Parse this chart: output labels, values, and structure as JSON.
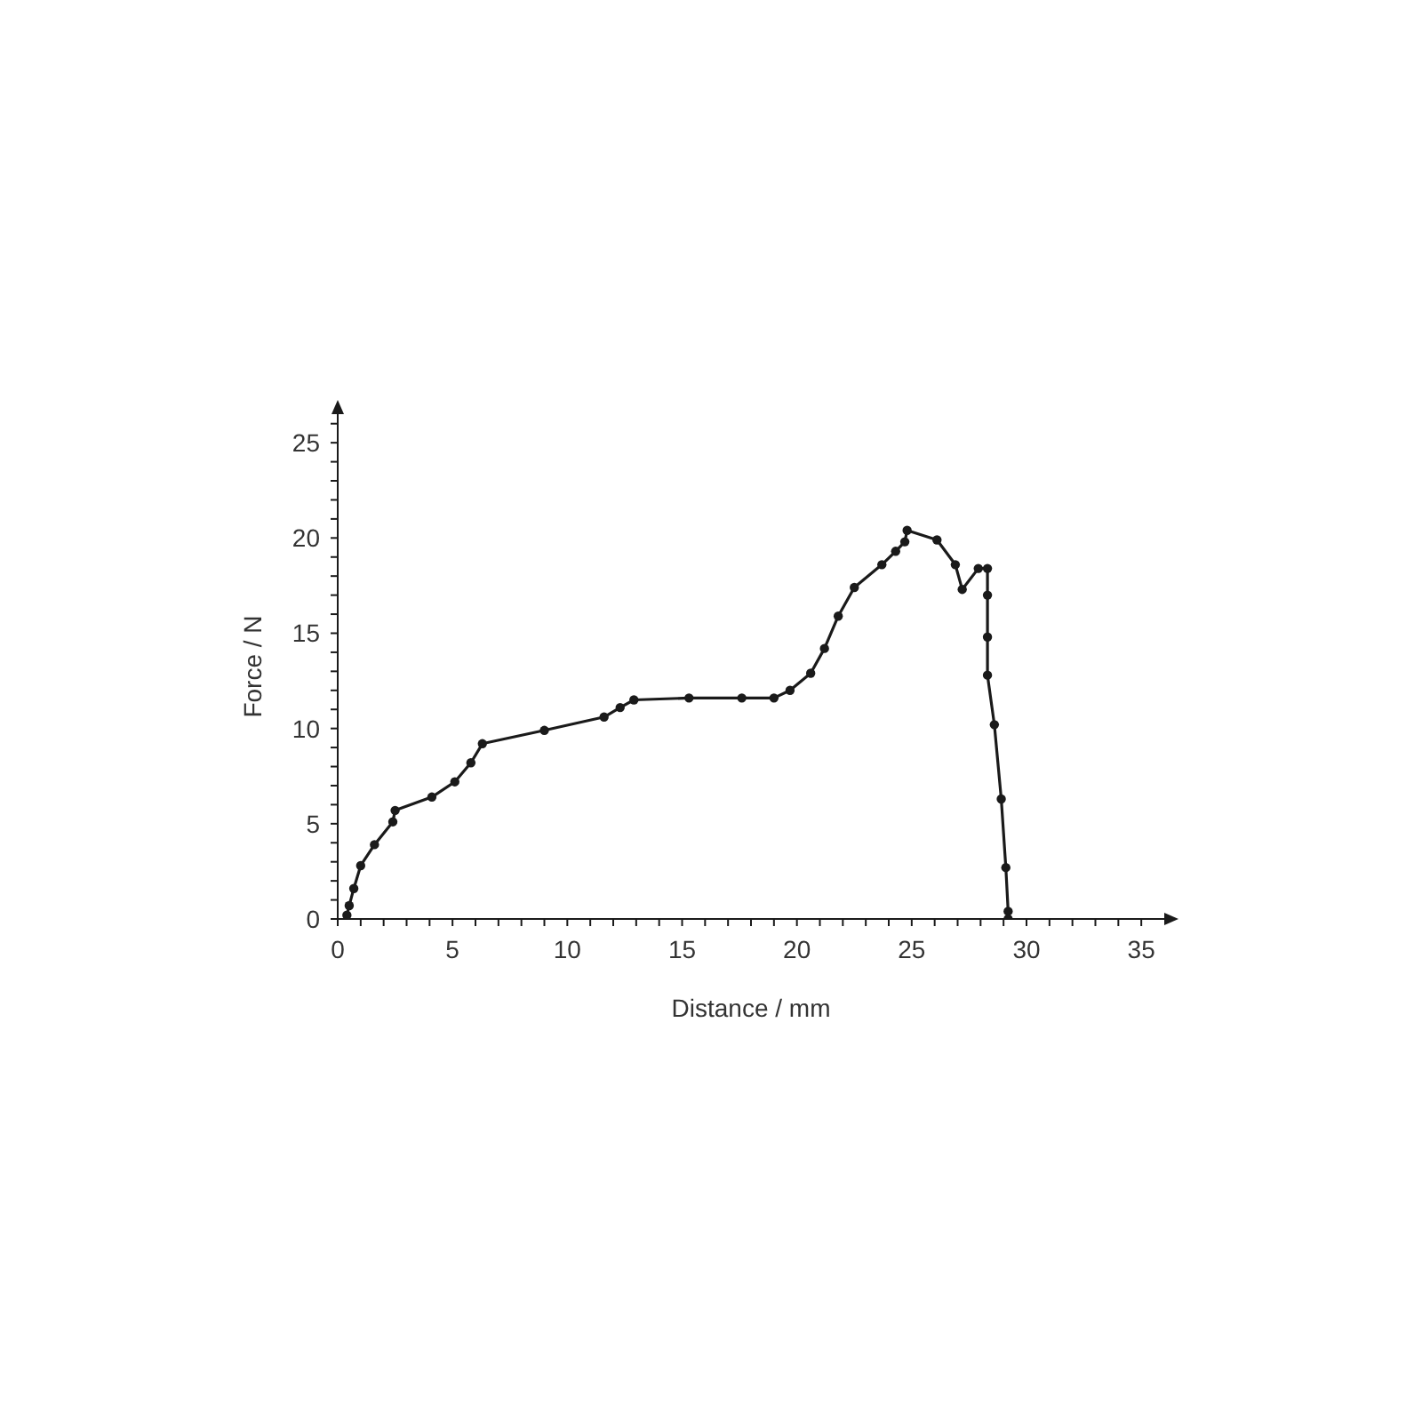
{
  "chart_data": {
    "type": "line",
    "xlabel": "Distance / mm",
    "ylabel": "Force / N",
    "x": [
      0.4,
      0.5,
      0.7,
      1.0,
      1.6,
      2.4,
      2.5,
      4.1,
      5.1,
      5.8,
      6.3,
      9.0,
      11.6,
      12.3,
      12.9,
      15.3,
      17.6,
      19.0,
      19.7,
      20.6,
      21.2,
      21.8,
      22.5,
      23.7,
      24.3,
      24.7,
      24.8,
      26.1,
      26.9,
      27.2,
      27.9,
      28.3,
      28.3,
      28.3,
      28.3,
      28.6,
      28.9,
      29.1,
      29.2,
      29.2
    ],
    "series": [
      {
        "color": "#1a1a1a",
        "values": [
          0.2,
          0.7,
          1.6,
          2.8,
          3.9,
          5.1,
          5.7,
          6.4,
          7.2,
          8.2,
          9.2,
          9.9,
          10.6,
          11.1,
          11.5,
          11.6,
          11.6,
          11.6,
          12.0,
          12.9,
          14.2,
          15.9,
          17.4,
          18.6,
          19.3,
          19.8,
          20.4,
          19.9,
          18.6,
          17.3,
          18.4,
          18.4,
          17.0,
          14.8,
          12.8,
          10.2,
          6.3,
          2.7,
          0.4,
          0.0
        ]
      }
    ],
    "xlim": [
      0,
      36
    ],
    "xticks": [
      0,
      {
        "value": 1,
        "label": null
      },
      {
        "value": 2,
        "label": null
      },
      {
        "value": 3,
        "label": null
      },
      {
        "value": 4,
        "label": null
      },
      5,
      {
        "value": 6,
        "label": null
      },
      {
        "value": 7,
        "label": null
      },
      {
        "value": 8,
        "label": null
      },
      {
        "value": 9,
        "label": null
      },
      10,
      {
        "value": 11,
        "label": null
      },
      {
        "value": 12,
        "label": null
      },
      {
        "value": 13,
        "label": null
      },
      {
        "value": 14,
        "label": null
      },
      15,
      {
        "value": 16,
        "label": null
      },
      {
        "value": 17,
        "label": null
      },
      {
        "value": 18,
        "label": null
      },
      {
        "value": 19,
        "label": null
      },
      20,
      {
        "value": 21,
        "label": null
      },
      {
        "value": 22,
        "label": null
      },
      {
        "value": 23,
        "label": null
      },
      {
        "value": 24,
        "label": null
      },
      25,
      {
        "value": 26,
        "label": null
      },
      {
        "value": 27,
        "label": null
      },
      {
        "value": 28,
        "label": null
      },
      {
        "value": 29,
        "label": null
      },
      30,
      {
        "value": 31,
        "label": null
      },
      {
        "value": 32,
        "label": null
      },
      {
        "value": 33,
        "label": null
      },
      {
        "value": 34,
        "label": null
      },
      35
    ],
    "ylim": [
      0,
      26.5
    ],
    "yticks": [
      0,
      {
        "value": 1,
        "label": null
      },
      {
        "value": 2,
        "label": null
      },
      {
        "value": 3,
        "label": null
      },
      {
        "value": 4,
        "label": null
      },
      5,
      {
        "value": 6,
        "label": null
      },
      {
        "value": 7,
        "label": null
      },
      {
        "value": 8,
        "label": null
      },
      {
        "value": 9,
        "label": null
      },
      10,
      {
        "value": 11,
        "label": null
      },
      {
        "value": 12,
        "label": null
      },
      {
        "value": 13,
        "label": null
      },
      {
        "value": 14,
        "label": null
      },
      15,
      {
        "value": 16,
        "label": null
      },
      {
        "value": 17,
        "label": null
      },
      {
        "value": 18,
        "label": null
      },
      {
        "value": 19,
        "label": null
      },
      20,
      {
        "value": 21,
        "label": null
      },
      {
        "value": 22,
        "label": null
      },
      {
        "value": 23,
        "label": null
      },
      {
        "value": 24,
        "label": null
      },
      25,
      {
        "value": 26,
        "label": null
      }
    ],
    "grid": false,
    "marker": "circle",
    "line_style": "solid"
  }
}
